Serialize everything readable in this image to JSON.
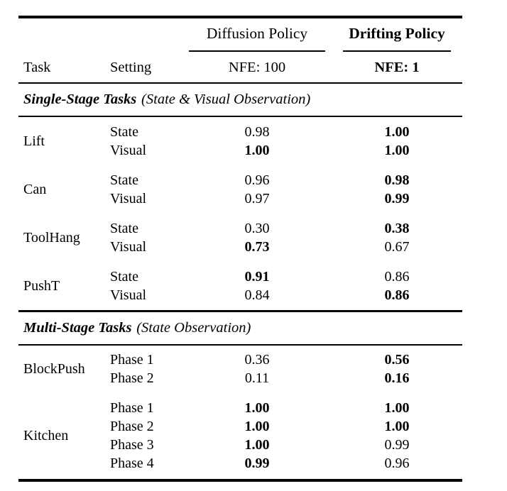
{
  "page": {
    "background": "#ffffff",
    "text_color": "#000000"
  },
  "table": {
    "header": {
      "task": "Task",
      "setting": "Setting",
      "policies": [
        {
          "name": "Diffusion Policy",
          "nfe": "NFE: 100",
          "bold": false
        },
        {
          "name": "Drifting Policy",
          "nfe": "NFE: 1",
          "bold": true
        }
      ]
    },
    "sections": [
      {
        "title": "Single-Stage Tasks",
        "subtitle": "(State & Visual Observation)",
        "groups": [
          {
            "task": "Lift",
            "rows": [
              {
                "setting": "State",
                "diffusion": {
                  "v": "0.98",
                  "bold": false
                },
                "drifting": {
                  "v": "1.00",
                  "bold": true
                }
              },
              {
                "setting": "Visual",
                "diffusion": {
                  "v": "1.00",
                  "bold": true
                },
                "drifting": {
                  "v": "1.00",
                  "bold": true
                }
              }
            ]
          },
          {
            "task": "Can",
            "rows": [
              {
                "setting": "State",
                "diffusion": {
                  "v": "0.96",
                  "bold": false
                },
                "drifting": {
                  "v": "0.98",
                  "bold": true
                }
              },
              {
                "setting": "Visual",
                "diffusion": {
                  "v": "0.97",
                  "bold": false
                },
                "drifting": {
                  "v": "0.99",
                  "bold": true
                }
              }
            ]
          },
          {
            "task": "ToolHang",
            "rows": [
              {
                "setting": "State",
                "diffusion": {
                  "v": "0.30",
                  "bold": false
                },
                "drifting": {
                  "v": "0.38",
                  "bold": true
                }
              },
              {
                "setting": "Visual",
                "diffusion": {
                  "v": "0.73",
                  "bold": true
                },
                "drifting": {
                  "v": "0.67",
                  "bold": false
                }
              }
            ]
          },
          {
            "task": "PushT",
            "rows": [
              {
                "setting": "State",
                "diffusion": {
                  "v": "0.91",
                  "bold": true
                },
                "drifting": {
                  "v": "0.86",
                  "bold": false
                }
              },
              {
                "setting": "Visual",
                "diffusion": {
                  "v": "0.84",
                  "bold": false
                },
                "drifting": {
                  "v": "0.86",
                  "bold": true
                }
              }
            ]
          }
        ]
      },
      {
        "title": "Multi-Stage Tasks",
        "subtitle": "(State Observation)",
        "groups": [
          {
            "task": "BlockPush",
            "rows": [
              {
                "setting": "Phase 1",
                "diffusion": {
                  "v": "0.36",
                  "bold": false
                },
                "drifting": {
                  "v": "0.56",
                  "bold": true
                }
              },
              {
                "setting": "Phase 2",
                "diffusion": {
                  "v": "0.11",
                  "bold": false
                },
                "drifting": {
                  "v": "0.16",
                  "bold": true
                }
              }
            ]
          },
          {
            "task": "Kitchen",
            "rows": [
              {
                "setting": "Phase 1",
                "diffusion": {
                  "v": "1.00",
                  "bold": true
                },
                "drifting": {
                  "v": "1.00",
                  "bold": true
                }
              },
              {
                "setting": "Phase 2",
                "diffusion": {
                  "v": "1.00",
                  "bold": true
                },
                "drifting": {
                  "v": "1.00",
                  "bold": true
                }
              },
              {
                "setting": "Phase 3",
                "diffusion": {
                  "v": "1.00",
                  "bold": true
                },
                "drifting": {
                  "v": "0.99",
                  "bold": false
                }
              },
              {
                "setting": "Phase 4",
                "diffusion": {
                  "v": "0.99",
                  "bold": true
                },
                "drifting": {
                  "v": "0.96",
                  "bold": false
                }
              }
            ]
          }
        ]
      }
    ]
  }
}
